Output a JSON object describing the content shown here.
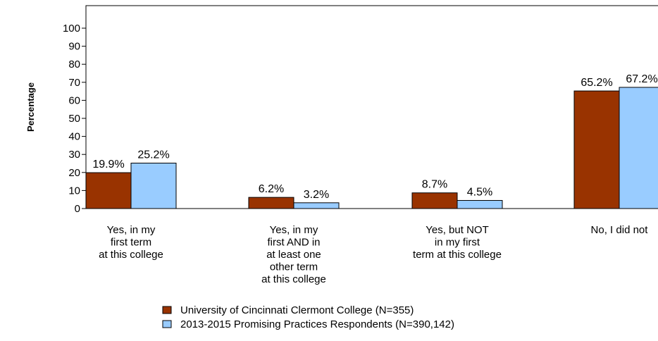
{
  "chart_data": {
    "type": "bar",
    "ylabel": "Percentage",
    "xlabel": "",
    "ylim": [
      0,
      100
    ],
    "yticks": [
      0,
      10,
      20,
      30,
      40,
      50,
      60,
      70,
      80,
      90,
      100
    ],
    "grid": false,
    "legend_position": "bottom",
    "categories": [
      [
        "Yes, in my",
        "first term",
        "at this college"
      ],
      [
        "Yes, in my",
        "first AND in",
        "at least one",
        "other term",
        "at this college"
      ],
      [
        "Yes, but NOT",
        "in my first",
        "term at this college"
      ],
      [
        "No, I did not"
      ]
    ],
    "series": [
      {
        "name": "University of Cincinnati Clermont College (N=355)",
        "color": "#993300",
        "values": [
          19.9,
          6.2,
          8.7,
          65.2
        ],
        "labels": [
          "19.9%",
          "6.2%",
          "8.7%",
          "65.2%"
        ]
      },
      {
        "name": "2013-2015 Promising Practices Respondents (N=390,142)",
        "color": "#99ccff",
        "values": [
          25.2,
          3.2,
          4.5,
          67.2
        ],
        "labels": [
          "25.2%",
          "3.2%",
          "4.5%",
          "67.2%"
        ]
      }
    ]
  }
}
